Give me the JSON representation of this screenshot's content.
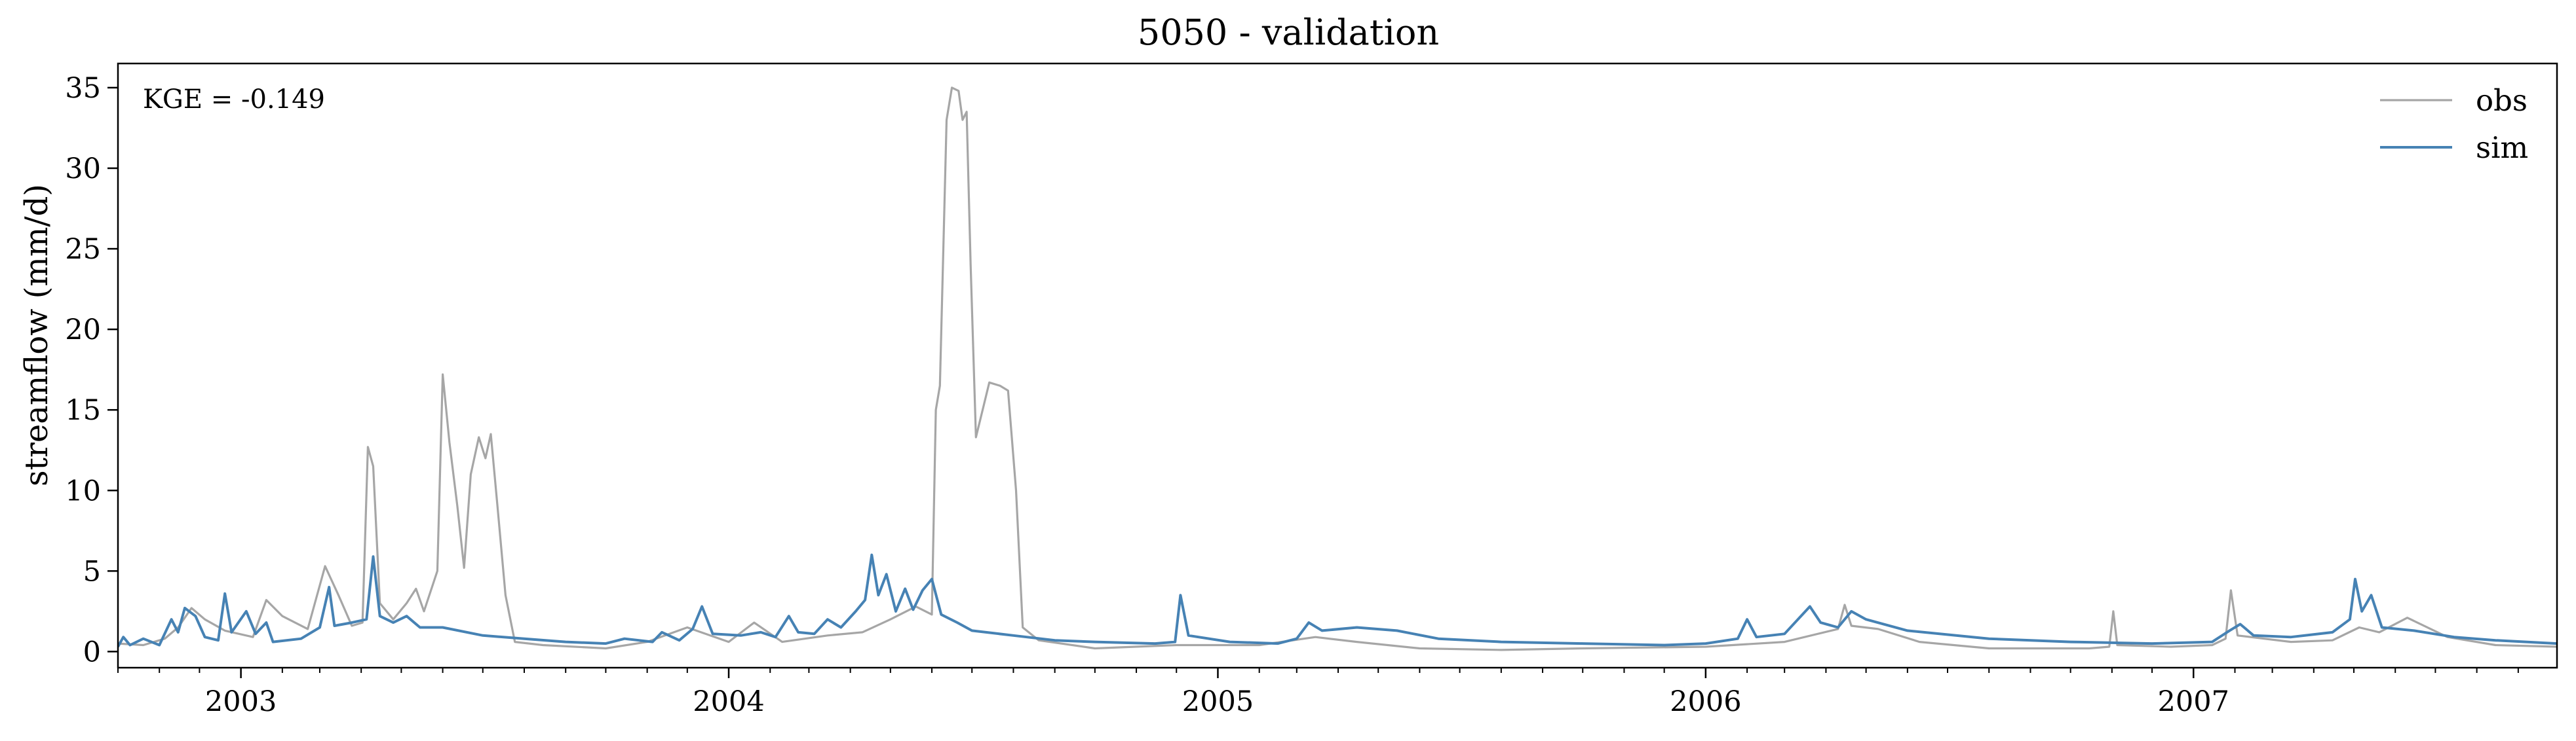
{
  "chart_data": {
    "type": "line",
    "title": "5050 - validation",
    "xlabel": "",
    "ylabel": "streamflow (mm/d)",
    "annotation": "KGE = -0.149",
    "x_range": [
      "2002-10-01",
      "2007-09-30"
    ],
    "ylim": [
      -1,
      36.5
    ],
    "yticks": [
      0,
      5,
      10,
      15,
      20,
      25,
      30,
      35
    ],
    "xticks": [
      "2003",
      "2004",
      "2005",
      "2006",
      "2007"
    ],
    "grid": false,
    "legend_position": "top-right",
    "series": [
      {
        "name": "obs",
        "color": "#a6a6a6",
        "points": [
          [
            "2002-10-01",
            0.5
          ],
          [
            "2002-10-20",
            0.4
          ],
          [
            "2002-11-05",
            0.8
          ],
          [
            "2002-11-15",
            1.5
          ],
          [
            "2002-11-25",
            2.7
          ],
          [
            "2002-12-05",
            2.0
          ],
          [
            "2002-12-20",
            1.3
          ],
          [
            "2003-01-10",
            0.9
          ],
          [
            "2003-01-20",
            3.2
          ],
          [
            "2003-02-01",
            2.2
          ],
          [
            "2003-02-20",
            1.4
          ],
          [
            "2003-03-05",
            5.3
          ],
          [
            "2003-03-15",
            3.5
          ],
          [
            "2003-03-25",
            1.6
          ],
          [
            "2003-04-02",
            1.8
          ],
          [
            "2003-04-06",
            12.7
          ],
          [
            "2003-04-10",
            11.5
          ],
          [
            "2003-04-15",
            3.0
          ],
          [
            "2003-04-25",
            2.0
          ],
          [
            "2003-05-05",
            3.0
          ],
          [
            "2003-05-12",
            3.9
          ],
          [
            "2003-05-18",
            2.5
          ],
          [
            "2003-05-28",
            5.0
          ],
          [
            "2003-06-01",
            17.2
          ],
          [
            "2003-06-06",
            13.0
          ],
          [
            "2003-06-12",
            9.0
          ],
          [
            "2003-06-17",
            5.2
          ],
          [
            "2003-06-22",
            11.0
          ],
          [
            "2003-06-28",
            13.3
          ],
          [
            "2003-07-03",
            12.0
          ],
          [
            "2003-07-07",
            13.5
          ],
          [
            "2003-07-12",
            9.0
          ],
          [
            "2003-07-18",
            3.5
          ],
          [
            "2003-07-25",
            0.6
          ],
          [
            "2003-08-15",
            0.4
          ],
          [
            "2003-10-01",
            0.2
          ],
          [
            "2003-11-01",
            0.6
          ],
          [
            "2003-12-01",
            1.5
          ],
          [
            "2004-01-01",
            0.6
          ],
          [
            "2004-01-20",
            1.8
          ],
          [
            "2004-02-10",
            0.6
          ],
          [
            "2004-03-15",
            1.0
          ],
          [
            "2004-04-10",
            1.2
          ],
          [
            "2004-05-01",
            2.0
          ],
          [
            "2004-05-20",
            2.8
          ],
          [
            "2004-06-01",
            2.3
          ],
          [
            "2004-06-04",
            15.0
          ],
          [
            "2004-06-07",
            16.5
          ],
          [
            "2004-06-12",
            33.0
          ],
          [
            "2004-06-16",
            35.0
          ],
          [
            "2004-06-21",
            34.8
          ],
          [
            "2004-06-24",
            33.0
          ],
          [
            "2004-06-27",
            33.5
          ],
          [
            "2004-06-30",
            24.0
          ],
          [
            "2004-07-04",
            13.3
          ],
          [
            "2004-07-09",
            15.0
          ],
          [
            "2004-07-14",
            16.7
          ],
          [
            "2004-07-22",
            16.5
          ],
          [
            "2004-07-28",
            16.2
          ],
          [
            "2004-08-03",
            10.0
          ],
          [
            "2004-08-08",
            1.5
          ],
          [
            "2004-08-20",
            0.7
          ],
          [
            "2004-10-01",
            0.2
          ],
          [
            "2004-12-01",
            0.4
          ],
          [
            "2005-02-01",
            0.4
          ],
          [
            "2005-03-15",
            0.9
          ],
          [
            "2005-04-15",
            0.6
          ],
          [
            "2005-06-01",
            0.2
          ],
          [
            "2005-08-01",
            0.1
          ],
          [
            "2005-10-01",
            0.2
          ],
          [
            "2006-01-01",
            0.3
          ],
          [
            "2006-03-01",
            0.6
          ],
          [
            "2006-04-10",
            1.4
          ],
          [
            "2006-04-15",
            2.9
          ],
          [
            "2006-04-20",
            1.6
          ],
          [
            "2006-05-10",
            1.4
          ],
          [
            "2006-06-10",
            0.6
          ],
          [
            "2006-08-01",
            0.2
          ],
          [
            "2006-10-15",
            0.2
          ],
          [
            "2006-10-30",
            0.3
          ],
          [
            "2006-11-02",
            2.5
          ],
          [
            "2006-11-05",
            0.4
          ],
          [
            "2006-12-15",
            0.3
          ],
          [
            "2007-01-15",
            0.4
          ],
          [
            "2007-01-25",
            0.8
          ],
          [
            "2007-01-29",
            3.8
          ],
          [
            "2007-02-03",
            1.0
          ],
          [
            "2007-03-15",
            0.6
          ],
          [
            "2007-04-15",
            0.7
          ],
          [
            "2007-05-05",
            1.5
          ],
          [
            "2007-05-20",
            1.2
          ],
          [
            "2007-06-10",
            2.1
          ],
          [
            "2007-07-10",
            0.9
          ],
          [
            "2007-08-15",
            0.4
          ],
          [
            "2007-09-30",
            0.3
          ]
        ]
      },
      {
        "name": "sim",
        "color": "#4682b4",
        "points": [
          [
            "2002-10-01",
            0.3
          ],
          [
            "2002-10-05",
            0.9
          ],
          [
            "2002-10-10",
            0.4
          ],
          [
            "2002-10-20",
            0.8
          ],
          [
            "2002-11-01",
            0.4
          ],
          [
            "2002-11-10",
            2.0
          ],
          [
            "2002-11-15",
            1.2
          ],
          [
            "2002-11-20",
            2.7
          ],
          [
            "2002-11-28",
            2.2
          ],
          [
            "2002-12-05",
            0.9
          ],
          [
            "2002-12-15",
            0.7
          ],
          [
            "2002-12-20",
            3.6
          ],
          [
            "2002-12-25",
            1.2
          ],
          [
            "2003-01-05",
            2.5
          ],
          [
            "2003-01-12",
            1.1
          ],
          [
            "2003-01-20",
            1.8
          ],
          [
            "2003-01-25",
            0.6
          ],
          [
            "2003-02-15",
            0.8
          ],
          [
            "2003-03-01",
            1.5
          ],
          [
            "2003-03-08",
            4.0
          ],
          [
            "2003-03-12",
            1.6
          ],
          [
            "2003-03-25",
            1.8
          ],
          [
            "2003-04-05",
            2.0
          ],
          [
            "2003-04-10",
            5.9
          ],
          [
            "2003-04-15",
            2.2
          ],
          [
            "2003-04-25",
            1.8
          ],
          [
            "2003-05-05",
            2.2
          ],
          [
            "2003-05-15",
            1.5
          ],
          [
            "2003-06-01",
            1.5
          ],
          [
            "2003-07-01",
            1.0
          ],
          [
            "2003-08-01",
            0.8
          ],
          [
            "2003-09-01",
            0.6
          ],
          [
            "2003-10-01",
            0.5
          ],
          [
            "2003-10-15",
            0.8
          ],
          [
            "2003-11-05",
            0.6
          ],
          [
            "2003-11-12",
            1.2
          ],
          [
            "2003-11-25",
            0.7
          ],
          [
            "2003-12-05",
            1.4
          ],
          [
            "2003-12-12",
            2.8
          ],
          [
            "2003-12-20",
            1.1
          ],
          [
            "2004-01-10",
            1.0
          ],
          [
            "2004-01-25",
            1.2
          ],
          [
            "2004-02-05",
            0.9
          ],
          [
            "2004-02-15",
            2.2
          ],
          [
            "2004-02-22",
            1.2
          ],
          [
            "2004-03-05",
            1.1
          ],
          [
            "2004-03-15",
            2.0
          ],
          [
            "2004-03-25",
            1.5
          ],
          [
            "2004-04-05",
            2.5
          ],
          [
            "2004-04-12",
            3.2
          ],
          [
            "2004-04-17",
            6.0
          ],
          [
            "2004-04-22",
            3.5
          ],
          [
            "2004-04-28",
            4.8
          ],
          [
            "2004-05-05",
            2.5
          ],
          [
            "2004-05-12",
            3.9
          ],
          [
            "2004-05-18",
            2.6
          ],
          [
            "2004-05-25",
            3.8
          ],
          [
            "2004-06-01",
            4.5
          ],
          [
            "2004-06-08",
            2.3
          ],
          [
            "2004-06-20",
            1.8
          ],
          [
            "2004-07-01",
            1.3
          ],
          [
            "2004-08-01",
            1.0
          ],
          [
            "2004-09-01",
            0.7
          ],
          [
            "2004-10-01",
            0.6
          ],
          [
            "2004-11-15",
            0.5
          ],
          [
            "2004-11-30",
            0.6
          ],
          [
            "2004-12-04",
            3.5
          ],
          [
            "2004-12-10",
            1.0
          ],
          [
            "2005-01-10",
            0.6
          ],
          [
            "2005-02-15",
            0.5
          ],
          [
            "2005-03-01",
            0.8
          ],
          [
            "2005-03-10",
            1.8
          ],
          [
            "2005-03-20",
            1.3
          ],
          [
            "2005-04-15",
            1.5
          ],
          [
            "2005-05-15",
            1.3
          ],
          [
            "2005-06-15",
            0.8
          ],
          [
            "2005-08-01",
            0.6
          ],
          [
            "2005-10-01",
            0.5
          ],
          [
            "2005-12-01",
            0.4
          ],
          [
            "2006-01-01",
            0.5
          ],
          [
            "2006-01-25",
            0.8
          ],
          [
            "2006-02-01",
            2.0
          ],
          [
            "2006-02-08",
            0.9
          ],
          [
            "2006-03-01",
            1.1
          ],
          [
            "2006-03-20",
            2.8
          ],
          [
            "2006-03-28",
            1.8
          ],
          [
            "2006-04-10",
            1.5
          ],
          [
            "2006-04-20",
            2.5
          ],
          [
            "2006-05-01",
            2.0
          ],
          [
            "2006-06-01",
            1.3
          ],
          [
            "2006-08-01",
            0.8
          ],
          [
            "2006-10-01",
            0.6
          ],
          [
            "2006-12-01",
            0.5
          ],
          [
            "2007-01-15",
            0.6
          ],
          [
            "2007-01-28",
            1.3
          ],
          [
            "2007-02-05",
            1.7
          ],
          [
            "2007-02-15",
            1.0
          ],
          [
            "2007-03-15",
            0.9
          ],
          [
            "2007-04-15",
            1.2
          ],
          [
            "2007-04-28",
            2.0
          ],
          [
            "2007-05-02",
            4.5
          ],
          [
            "2007-05-07",
            2.5
          ],
          [
            "2007-05-14",
            3.5
          ],
          [
            "2007-05-22",
            1.5
          ],
          [
            "2007-06-15",
            1.3
          ],
          [
            "2007-07-15",
            0.9
          ],
          [
            "2007-08-15",
            0.7
          ],
          [
            "2007-09-30",
            0.5
          ]
        ]
      }
    ]
  }
}
